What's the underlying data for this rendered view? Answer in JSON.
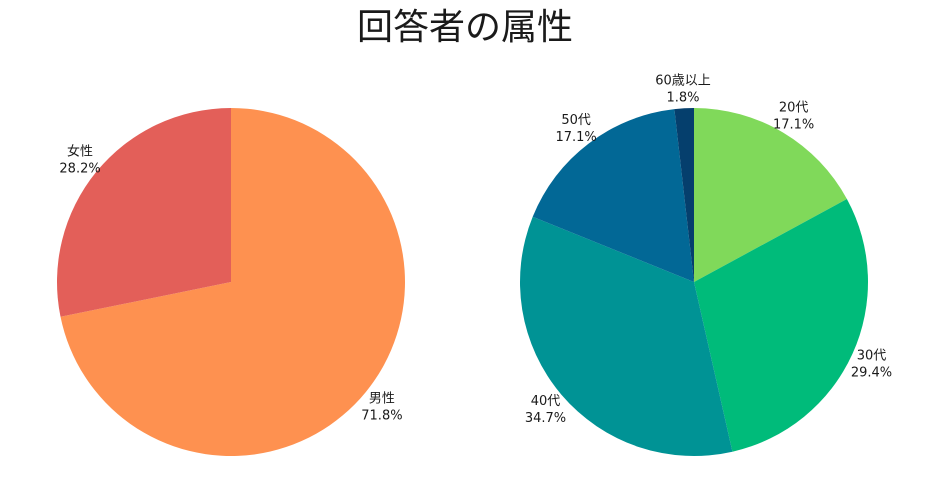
{
  "title": "回答者の属性",
  "chart_data": [
    {
      "type": "pie",
      "title": "",
      "categories": [
        "男性",
        "女性"
      ],
      "values": [
        71.8,
        28.2
      ],
      "value_labels": [
        "71.8%",
        "28.2%"
      ],
      "colors": [
        "#FE9150",
        "#E35F59"
      ],
      "start": "top",
      "direction": "clockwise"
    },
    {
      "type": "pie",
      "title": "",
      "categories": [
        "20代",
        "30代",
        "40代",
        "50代",
        "60歳以上"
      ],
      "values": [
        17.1,
        29.4,
        34.7,
        17.1,
        1.8
      ],
      "value_labels": [
        "17.1%",
        "29.4%",
        "34.7%",
        "17.1%",
        "1.8%"
      ],
      "colors": [
        "#80D95A",
        "#00BB7A",
        "#009395",
        "#026896",
        "#053F6D"
      ],
      "start": "top",
      "direction": "clockwise"
    }
  ]
}
